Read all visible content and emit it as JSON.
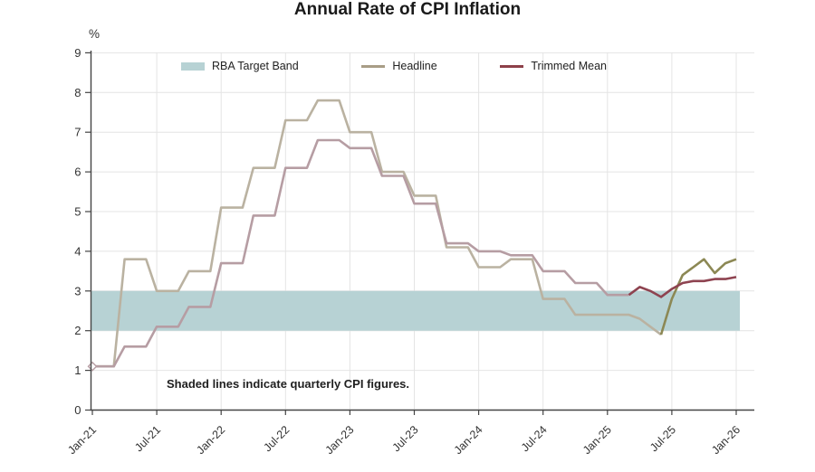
{
  "page": {
    "title": "Annual Rate of CPI Inflation"
  },
  "chart_data": {
    "type": "line",
    "title": "Annual Rate of CPI Inflation",
    "ylabel": "%",
    "xlabel": "",
    "ylim": [
      0,
      9
    ],
    "yticks": [
      0,
      1,
      2,
      3,
      4,
      5,
      6,
      7,
      8,
      9
    ],
    "grid": true,
    "legend_position": "top-center",
    "note": "Shaded lines indicate quarterly CPI figures.",
    "x_unit": "months since Jan-21",
    "x_range_months": [
      0,
      60
    ],
    "x_ticks": [
      {
        "month": 0,
        "label": "Jan-21"
      },
      {
        "month": 6,
        "label": "Jul-21"
      },
      {
        "month": 12,
        "label": "Jan-22"
      },
      {
        "month": 18,
        "label": "Jul-22"
      },
      {
        "month": 24,
        "label": "Jan-23"
      },
      {
        "month": 30,
        "label": "Jul-23"
      },
      {
        "month": 36,
        "label": "Jan-24"
      },
      {
        "month": 42,
        "label": "Jul-24"
      },
      {
        "month": 48,
        "label": "Jan-25"
      },
      {
        "month": 54,
        "label": "Jul-25"
      },
      {
        "month": 60,
        "label": "Jan-26"
      }
    ],
    "target_band": {
      "label": "RBA Target Band",
      "low": 2,
      "high": 3,
      "color": "#b7d2d4"
    },
    "start_marker": {
      "month": 0,
      "value": 1.1
    },
    "axis_color": "#444444",
    "grid_color": "#e4e4e4",
    "text_color": "#333333",
    "series": [
      {
        "name": "Headline",
        "legend_color": "#a89d86",
        "segments": [
          {
            "kind": "quarterly",
            "shaded": true,
            "color": "#bab2a1",
            "start_month": 0,
            "values": [
              1.1,
              1.1,
              1.1,
              3.8,
              3.8,
              3.8,
              3.0,
              3.0,
              3.0,
              3.5,
              3.5,
              3.5,
              5.1,
              5.1,
              5.1,
              6.1,
              6.1,
              6.1,
              7.3,
              7.3,
              7.3,
              7.8,
              7.8,
              7.8,
              7.0,
              7.0,
              7.0,
              6.0,
              6.0,
              6.0,
              5.4,
              5.4,
              5.4,
              4.1,
              4.1,
              4.1,
              3.6,
              3.6,
              3.6,
              3.8,
              3.8,
              3.8,
              2.8,
              2.8,
              2.8,
              2.4,
              2.4,
              2.4,
              2.4,
              2.4,
              2.4,
              2.3,
              2.1,
              1.9
            ]
          },
          {
            "kind": "monthly",
            "shaded": false,
            "color": "#8c8854",
            "start_month": 53,
            "values": [
              1.9,
              2.8,
              3.4,
              3.6,
              3.8,
              3.45,
              3.7,
              3.8
            ]
          }
        ]
      },
      {
        "name": "Trimmed Mean",
        "legend_color": "#8d4049",
        "segments": [
          {
            "kind": "quarterly",
            "shaded": true,
            "color": "#b69da3",
            "start_month": 0,
            "values": [
              1.1,
              1.1,
              1.1,
              1.6,
              1.6,
              1.6,
              2.1,
              2.1,
              2.1,
              2.6,
              2.6,
              2.6,
              3.7,
              3.7,
              3.7,
              4.9,
              4.9,
              4.9,
              6.1,
              6.1,
              6.1,
              6.8,
              6.8,
              6.8,
              6.6,
              6.6,
              6.6,
              5.9,
              5.9,
              5.9,
              5.2,
              5.2,
              5.2,
              4.2,
              4.2,
              4.2,
              4.0,
              4.0,
              4.0,
              3.9,
              3.9,
              3.9,
              3.5,
              3.5,
              3.5,
              3.2,
              3.2,
              3.2,
              2.9,
              2.9,
              2.9
            ]
          },
          {
            "kind": "monthly",
            "shaded": false,
            "color": "#8e4350",
            "start_month": 50,
            "values": [
              2.9,
              3.1,
              3.0,
              2.85,
              3.05,
              3.2,
              3.25,
              3.25,
              3.3,
              3.3,
              3.35
            ]
          }
        ]
      }
    ]
  }
}
